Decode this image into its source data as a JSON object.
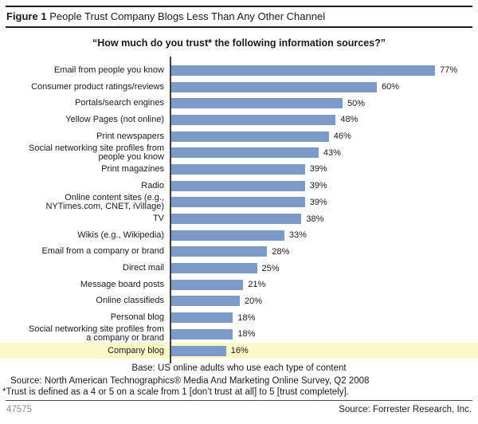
{
  "header": {
    "figure_label": "Figure 1",
    "title": " People Trust Company Blogs Less Than Any Other Channel"
  },
  "subtitle": "“How much do you trust* the following information sources?”",
  "chart_data": {
    "type": "bar",
    "orientation": "horizontal",
    "title": "How much do you trust* the following information sources?",
    "xlabel": "",
    "ylabel": "",
    "xlim": [
      0,
      80
    ],
    "grid": false,
    "bar_color": "#7c99c8",
    "highlight_band_color": "#fbf9c8",
    "value_suffix": "%",
    "categories": [
      "Email from people you know",
      "Consumer product ratings/reviews",
      "Portals/search engines",
      "Yellow Pages (not online)",
      "Print newspapers",
      "Social networking site profiles from people you know",
      "Print magazines",
      "Radio",
      "Online content sites (e.g., NYTimes.com, CNET, iVillage)",
      "TV",
      "Wikis (e.g., Wikipedia)",
      "Email from a company or brand",
      "Direct mail",
      "Message board posts",
      "Online classifieds",
      "Personal blog",
      "Social networking site profiles from a company or brand",
      "Company blog"
    ],
    "values": [
      77,
      60,
      50,
      48,
      46,
      43,
      39,
      39,
      39,
      38,
      33,
      28,
      25,
      21,
      20,
      18,
      18,
      16
    ],
    "rows": [
      {
        "label_lines": [
          "Email from people you know"
        ],
        "value": 77,
        "display": "77%",
        "highlight": false
      },
      {
        "label_lines": [
          "Consumer product ratings/reviews"
        ],
        "value": 60,
        "display": "60%",
        "highlight": false
      },
      {
        "label_lines": [
          "Portals/search engines"
        ],
        "value": 50,
        "display": "50%",
        "highlight": false
      },
      {
        "label_lines": [
          "Yellow Pages (not online)"
        ],
        "value": 48,
        "display": "48%",
        "highlight": false
      },
      {
        "label_lines": [
          "Print newspapers"
        ],
        "value": 46,
        "display": "46%",
        "highlight": false
      },
      {
        "label_lines": [
          "Social networking site profiles from",
          "people you know"
        ],
        "value": 43,
        "display": "43%",
        "highlight": false
      },
      {
        "label_lines": [
          "Print magazines"
        ],
        "value": 39,
        "display": "39%",
        "highlight": false
      },
      {
        "label_lines": [
          "Radio"
        ],
        "value": 39,
        "display": "39%",
        "highlight": false
      },
      {
        "label_lines": [
          "Online content sites (e.g.,",
          "NYTimes.com, CNET, iVillage)"
        ],
        "value": 39,
        "display": "39%",
        "highlight": false
      },
      {
        "label_lines": [
          "TV"
        ],
        "value": 38,
        "display": "38%",
        "highlight": false
      },
      {
        "label_lines": [
          "Wikis (e.g., Wikipedia)"
        ],
        "value": 33,
        "display": "33%",
        "highlight": false
      },
      {
        "label_lines": [
          "Email from a company or brand"
        ],
        "value": 28,
        "display": "28%",
        "highlight": false
      },
      {
        "label_lines": [
          "Direct mail"
        ],
        "value": 25,
        "display": "25%",
        "highlight": false
      },
      {
        "label_lines": [
          "Message board posts"
        ],
        "value": 21,
        "display": "21%",
        "highlight": false
      },
      {
        "label_lines": [
          "Online classifieds"
        ],
        "value": 20,
        "display": "20%",
        "highlight": false
      },
      {
        "label_lines": [
          "Personal blog"
        ],
        "value": 18,
        "display": "18%",
        "highlight": false
      },
      {
        "label_lines": [
          "Social networking site profiles from",
          "a company or brand"
        ],
        "value": 18,
        "display": "18%",
        "highlight": false
      },
      {
        "label_lines": [
          "Company blog"
        ],
        "value": 16,
        "display": "16%",
        "highlight": true
      }
    ]
  },
  "footer": {
    "base": "Base: US online adults who use each type of content",
    "source_line": "Source: North American Technographics® Media And Marketing Online Survey, Q2 2008",
    "trust_note": "*Trust is defined as a 4 or 5 on a scale from 1 [don’t trust at all] to 5 [trust completely].",
    "doc_number": "47575",
    "source_right": "Source: Forrester Research, Inc."
  }
}
